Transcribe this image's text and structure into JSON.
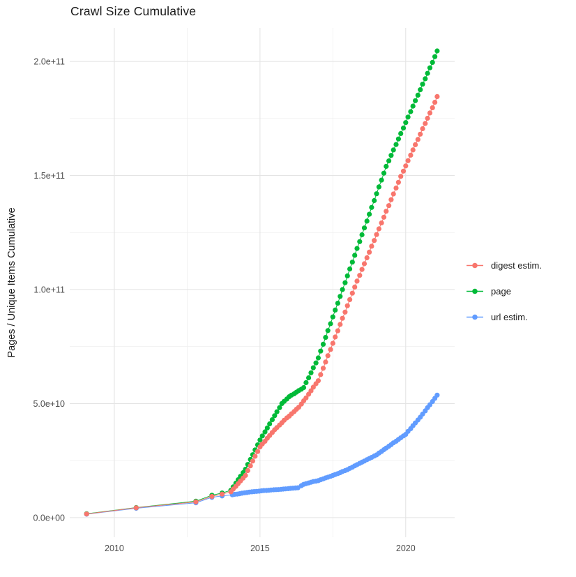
{
  "title": "Crawl Size Cumulative",
  "y_axis_title": "Pages / Unique Items Cumulative",
  "chart_data": {
    "type": "line",
    "title": "Crawl Size Cumulative",
    "xlabel": "",
    "ylabel": "Pages / Unique Items Cumulative",
    "y_value_unit": 1000000000,
    "y_unit_note": "point values below are in billions of pages/items",
    "xlim": [
      2008.47,
      2021.68
    ],
    "ylim_billions": [
      -8.6,
      214.7
    ],
    "grid": true,
    "legend_position": "right",
    "x_ticks": [
      {
        "v": 2010,
        "label": "2010"
      },
      {
        "v": 2015,
        "label": "2015"
      },
      {
        "v": 2020,
        "label": "2020"
      }
    ],
    "y_ticks": [
      {
        "v": 0,
        "label": "0.0e+00"
      },
      {
        "v": 50,
        "label": "5.0e+10"
      },
      {
        "v": 100,
        "label": "1.0e+11"
      },
      {
        "v": 150,
        "label": "1.5e+11"
      },
      {
        "v": 200,
        "label": "2.0e+11"
      }
    ],
    "x_minor": [
      2012.5,
      2017.5
    ],
    "y_minor_billions": [
      25,
      75,
      125,
      175
    ],
    "series": [
      {
        "name": "digest estim.",
        "color": "#F8766D",
        "points": [
          [
            2009.05,
            1.6
          ],
          [
            2010.75,
            4.3
          ],
          [
            2012.8,
            6.9
          ],
          [
            2013.35,
            9.3
          ],
          [
            2013.7,
            10.3
          ],
          [
            2014,
            11.3
          ],
          [
            2014.08,
            12.5
          ],
          [
            2014.17,
            13.7
          ],
          [
            2014.25,
            14.9
          ],
          [
            2014.33,
            16.1
          ],
          [
            2014.42,
            17.3
          ],
          [
            2014.5,
            18.5
          ],
          [
            2014.58,
            20.6
          ],
          [
            2014.67,
            22.7
          ],
          [
            2014.75,
            24.8
          ],
          [
            2014.83,
            26.9
          ],
          [
            2014.92,
            29
          ],
          [
            2015,
            31
          ],
          [
            2015.08,
            32.3
          ],
          [
            2015.17,
            33.5
          ],
          [
            2015.25,
            34.8
          ],
          [
            2015.33,
            36
          ],
          [
            2015.42,
            37.3
          ],
          [
            2015.5,
            38.5
          ],
          [
            2015.58,
            39.5
          ],
          [
            2015.67,
            40.6
          ],
          [
            2015.75,
            41.6
          ],
          [
            2015.83,
            42.7
          ],
          [
            2015.92,
            43.7
          ],
          [
            2016,
            44.5
          ],
          [
            2016.08,
            45.5
          ],
          [
            2016.17,
            46.5
          ],
          [
            2016.25,
            47.5
          ],
          [
            2016.33,
            48.4
          ],
          [
            2016.42,
            49.8
          ],
          [
            2016.5,
            51.2
          ],
          [
            2016.58,
            52.5
          ],
          [
            2016.67,
            54.1
          ],
          [
            2016.75,
            55.6
          ],
          [
            2016.83,
            57.2
          ],
          [
            2016.92,
            58.7
          ],
          [
            2017,
            60
          ],
          [
            2017.08,
            62.7
          ],
          [
            2017.17,
            65.5
          ],
          [
            2017.25,
            68.2
          ],
          [
            2017.33,
            71
          ],
          [
            2017.42,
            73.7
          ],
          [
            2017.5,
            76.4
          ],
          [
            2017.58,
            79.2
          ],
          [
            2017.67,
            81.9
          ],
          [
            2017.75,
            84.7
          ],
          [
            2017.83,
            87.4
          ],
          [
            2017.92,
            90.1
          ],
          [
            2018,
            92.9
          ],
          [
            2018.08,
            95.6
          ],
          [
            2018.17,
            98.4
          ],
          [
            2018.25,
            101.1
          ],
          [
            2018.33,
            103.7
          ],
          [
            2018.42,
            106.2
          ],
          [
            2018.5,
            108.8
          ],
          [
            2018.58,
            111.3
          ],
          [
            2018.67,
            113.9
          ],
          [
            2018.75,
            116.4
          ],
          [
            2018.83,
            119
          ],
          [
            2018.92,
            121.5
          ],
          [
            2019,
            124.1
          ],
          [
            2019.08,
            126.6
          ],
          [
            2019.17,
            129.2
          ],
          [
            2019.25,
            131.7
          ],
          [
            2019.33,
            134.3
          ],
          [
            2019.42,
            136.8
          ],
          [
            2019.5,
            139.4
          ],
          [
            2019.58,
            141.9
          ],
          [
            2019.67,
            144.5
          ],
          [
            2019.75,
            147
          ],
          [
            2019.83,
            149.6
          ],
          [
            2019.92,
            151.9
          ],
          [
            2020,
            154.2
          ],
          [
            2020.08,
            156.5
          ],
          [
            2020.17,
            158.9
          ],
          [
            2020.25,
            161.2
          ],
          [
            2020.33,
            163.5
          ],
          [
            2020.42,
            165.8
          ],
          [
            2020.5,
            168.1
          ],
          [
            2020.58,
            170.5
          ],
          [
            2020.67,
            172.8
          ],
          [
            2020.75,
            175.1
          ],
          [
            2020.83,
            177.4
          ],
          [
            2020.92,
            179.7
          ],
          [
            2021,
            182.1
          ],
          [
            2021.08,
            184.6
          ]
        ]
      },
      {
        "name": "page",
        "color": "#00BA38",
        "points": [
          [
            2009.05,
            1.7
          ],
          [
            2010.75,
            4.4
          ],
          [
            2012.8,
            7.2
          ],
          [
            2013.35,
            9.8
          ],
          [
            2013.7,
            10.8
          ],
          [
            2014,
            12
          ],
          [
            2014.08,
            13.5
          ],
          [
            2014.17,
            15.1
          ],
          [
            2014.25,
            16.6
          ],
          [
            2014.33,
            18.1
          ],
          [
            2014.42,
            19.7
          ],
          [
            2014.5,
            21.2
          ],
          [
            2014.58,
            23.3
          ],
          [
            2014.67,
            25.5
          ],
          [
            2014.75,
            27.6
          ],
          [
            2014.83,
            29.7
          ],
          [
            2014.92,
            31.9
          ],
          [
            2015,
            34
          ],
          [
            2015.08,
            35.8
          ],
          [
            2015.17,
            37.6
          ],
          [
            2015.25,
            39.3
          ],
          [
            2015.33,
            41.1
          ],
          [
            2015.42,
            42.9
          ],
          [
            2015.5,
            44.7
          ],
          [
            2015.58,
            46.4
          ],
          [
            2015.67,
            48.2
          ],
          [
            2015.75,
            50
          ],
          [
            2015.83,
            51
          ],
          [
            2015.92,
            52
          ],
          [
            2016,
            53
          ],
          [
            2016.08,
            53.7
          ],
          [
            2016.17,
            54.3
          ],
          [
            2016.25,
            55
          ],
          [
            2016.33,
            55.7
          ],
          [
            2016.42,
            56.3
          ],
          [
            2016.5,
            57
          ],
          [
            2016.58,
            59.2
          ],
          [
            2016.67,
            61.3
          ],
          [
            2016.75,
            63.5
          ],
          [
            2016.83,
            65.7
          ],
          [
            2016.92,
            67.8
          ],
          [
            2017,
            70
          ],
          [
            2017.08,
            73
          ],
          [
            2017.17,
            76
          ],
          [
            2017.25,
            79
          ],
          [
            2017.33,
            82
          ],
          [
            2017.42,
            85
          ],
          [
            2017.5,
            88
          ],
          [
            2017.58,
            91
          ],
          [
            2017.67,
            94
          ],
          [
            2017.75,
            97
          ],
          [
            2017.83,
            100
          ],
          [
            2017.92,
            103
          ],
          [
            2018,
            106
          ],
          [
            2018.08,
            109
          ],
          [
            2018.17,
            112
          ],
          [
            2018.25,
            115
          ],
          [
            2018.33,
            118
          ],
          [
            2018.42,
            121
          ],
          [
            2018.5,
            124
          ],
          [
            2018.58,
            127
          ],
          [
            2018.67,
            130
          ],
          [
            2018.75,
            133
          ],
          [
            2018.83,
            136
          ],
          [
            2018.92,
            139
          ],
          [
            2019,
            142
          ],
          [
            2019.08,
            145
          ],
          [
            2019.17,
            148
          ],
          [
            2019.25,
            151
          ],
          [
            2019.33,
            154
          ],
          [
            2019.42,
            156.4
          ],
          [
            2019.5,
            158.8
          ],
          [
            2019.58,
            161.2
          ],
          [
            2019.67,
            163.6
          ],
          [
            2019.75,
            166
          ],
          [
            2019.83,
            168.4
          ],
          [
            2019.92,
            170.8
          ],
          [
            2020,
            173.2
          ],
          [
            2020.08,
            175.6
          ],
          [
            2020.17,
            178
          ],
          [
            2020.25,
            180.4
          ],
          [
            2020.33,
            182.8
          ],
          [
            2020.42,
            185.2
          ],
          [
            2020.5,
            187.6
          ],
          [
            2020.58,
            190
          ],
          [
            2020.67,
            192.4
          ],
          [
            2020.75,
            194.8
          ],
          [
            2020.83,
            197.2
          ],
          [
            2020.92,
            199.6
          ],
          [
            2021,
            202.1
          ],
          [
            2021.08,
            204.6
          ]
        ]
      },
      {
        "name": "url estim.",
        "color": "#619CFF",
        "points": [
          [
            2009.05,
            1.5
          ],
          [
            2010.75,
            4.1
          ],
          [
            2012.8,
            6.5
          ],
          [
            2013.35,
            8.9
          ],
          [
            2013.7,
            9.5
          ],
          [
            2014.05,
            10
          ],
          [
            2014.13,
            10.2
          ],
          [
            2014.22,
            10.3
          ],
          [
            2014.3,
            10.5
          ],
          [
            2014.38,
            10.7
          ],
          [
            2014.47,
            10.9
          ],
          [
            2014.55,
            11
          ],
          [
            2014.63,
            11.2
          ],
          [
            2014.72,
            11.3
          ],
          [
            2014.8,
            11.4
          ],
          [
            2014.88,
            11.5
          ],
          [
            2014.97,
            11.6
          ],
          [
            2015.05,
            11.75
          ],
          [
            2015.13,
            11.85
          ],
          [
            2015.22,
            11.9
          ],
          [
            2015.3,
            12
          ],
          [
            2015.38,
            12.1
          ],
          [
            2015.47,
            12.2
          ],
          [
            2015.55,
            12.25
          ],
          [
            2015.63,
            12.3
          ],
          [
            2015.72,
            12.4
          ],
          [
            2015.8,
            12.5
          ],
          [
            2015.88,
            12.6
          ],
          [
            2015.97,
            12.7
          ],
          [
            2016.05,
            12.8
          ],
          [
            2016.13,
            12.9
          ],
          [
            2016.22,
            13
          ],
          [
            2016.3,
            13.1
          ],
          [
            2016.42,
            14
          ],
          [
            2016.5,
            14.6
          ],
          [
            2016.58,
            14.9
          ],
          [
            2016.67,
            15.2
          ],
          [
            2016.75,
            15.5
          ],
          [
            2016.83,
            15.8
          ],
          [
            2016.92,
            16
          ],
          [
            2017,
            16.2
          ],
          [
            2017.08,
            16.6
          ],
          [
            2017.17,
            17
          ],
          [
            2017.25,
            17.4
          ],
          [
            2017.33,
            17.7
          ],
          [
            2017.42,
            18.1
          ],
          [
            2017.5,
            18.5
          ],
          [
            2017.58,
            18.9
          ],
          [
            2017.67,
            19.3
          ],
          [
            2017.75,
            19.7
          ],
          [
            2017.83,
            20.2
          ],
          [
            2017.92,
            20.6
          ],
          [
            2018,
            21
          ],
          [
            2018.08,
            21.6
          ],
          [
            2018.17,
            22.1
          ],
          [
            2018.25,
            22.7
          ],
          [
            2018.33,
            23.2
          ],
          [
            2018.42,
            23.8
          ],
          [
            2018.5,
            24.3
          ],
          [
            2018.58,
            24.8
          ],
          [
            2018.67,
            25.4
          ],
          [
            2018.75,
            25.9
          ],
          [
            2018.83,
            26.4
          ],
          [
            2018.92,
            27
          ],
          [
            2019,
            27.5
          ],
          [
            2019.08,
            28.3
          ],
          [
            2019.17,
            29
          ],
          [
            2019.25,
            29.8
          ],
          [
            2019.33,
            30.5
          ],
          [
            2019.42,
            31.3
          ],
          [
            2019.5,
            32
          ],
          [
            2019.58,
            32.8
          ],
          [
            2019.67,
            33.5
          ],
          [
            2019.75,
            34.3
          ],
          [
            2019.83,
            35
          ],
          [
            2019.92,
            35.8
          ],
          [
            2020,
            36.5
          ],
          [
            2020.08,
            37.8
          ],
          [
            2020.17,
            39
          ],
          [
            2020.25,
            40.3
          ],
          [
            2020.33,
            41.5
          ],
          [
            2020.42,
            42.8
          ],
          [
            2020.5,
            44
          ],
          [
            2020.58,
            45.4
          ],
          [
            2020.67,
            46.8
          ],
          [
            2020.75,
            48.2
          ],
          [
            2020.83,
            49.5
          ],
          [
            2020.92,
            50.9
          ],
          [
            2021,
            52.3
          ],
          [
            2021.08,
            53.7
          ]
        ]
      }
    ],
    "style_colors": {
      "major_grid": "#e4e4e4",
      "minor_grid": "#efefef",
      "tick_label": "#4d4d4d"
    }
  }
}
